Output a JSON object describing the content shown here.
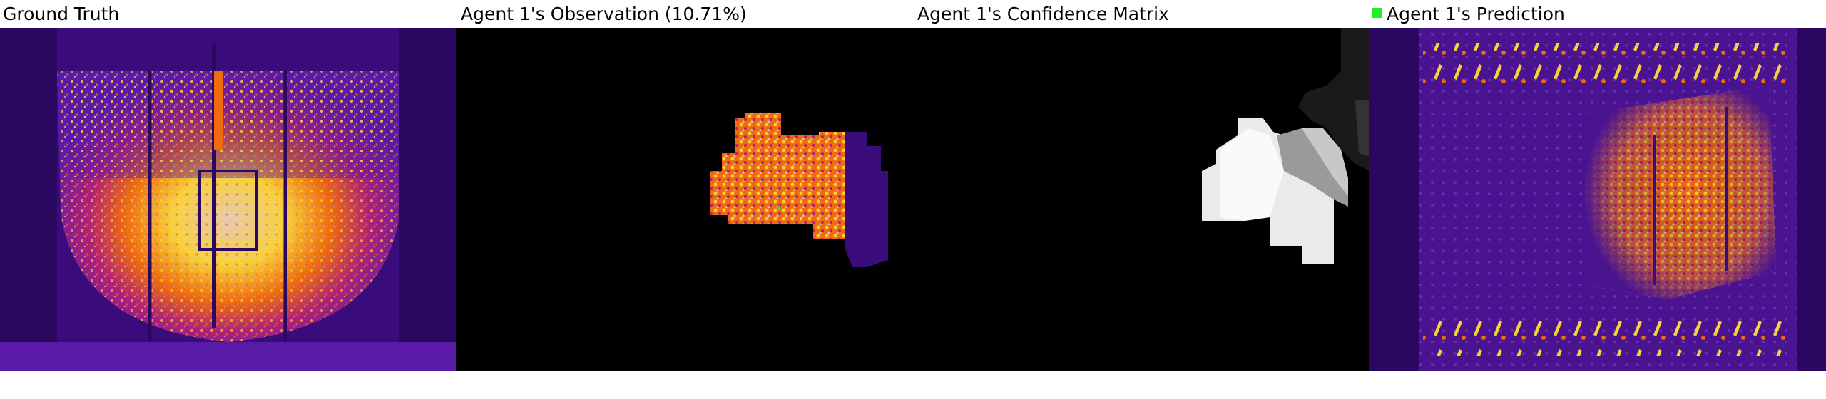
{
  "panels": [
    {
      "id": "ground_truth",
      "label": "Ground Truth"
    },
    {
      "id": "observation",
      "label": "Agent 1's Observation (10.71%)"
    },
    {
      "id": "confidence",
      "label": "Agent 1's Confidence Matrix"
    },
    {
      "id": "prediction",
      "label": "Agent 1's Prediction"
    }
  ],
  "legend": {
    "color": "#22ee22"
  },
  "colors": {
    "deep_purple": "#3a0b7a",
    "purple": "#5a1aa8",
    "magenta": "#b0207a",
    "orange": "#f06a10",
    "yellow": "#f7d13a",
    "hot_white": "#d8c8c8"
  }
}
